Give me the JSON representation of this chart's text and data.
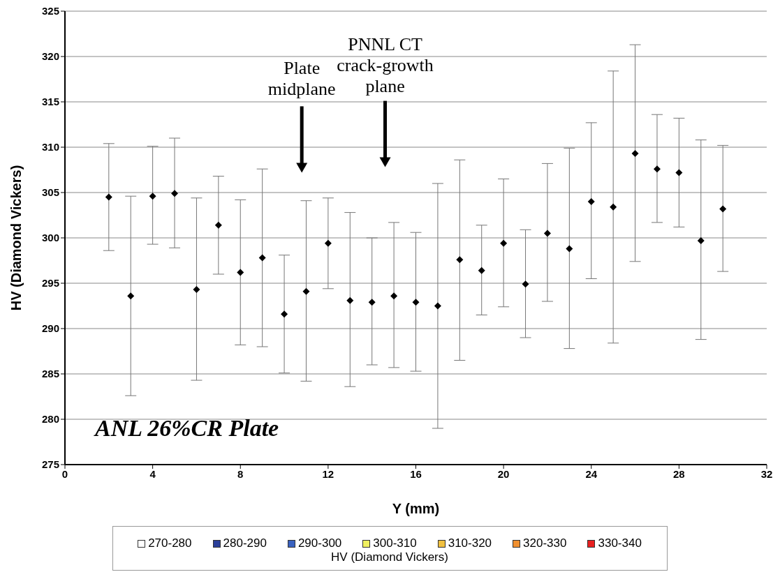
{
  "chart_data": {
    "type": "scatter",
    "xlabel": "Y (mm)",
    "ylabel": "HV (Diamond Vickers)",
    "legend_title": "HV (Diamond Vickers)",
    "x": [
      2,
      3,
      4,
      5,
      6,
      7,
      8,
      9,
      10,
      11,
      12,
      13,
      14,
      15,
      16,
      17,
      18,
      19,
      20,
      21,
      22,
      23,
      24,
      25,
      26,
      27,
      28,
      29,
      30
    ],
    "series": [
      {
        "color": "#000000",
        "values": [
          304.5,
          293.6,
          304.6,
          304.9,
          294.3,
          301.4,
          296.2,
          297.8,
          291.6,
          294.1,
          299.4,
          293.1,
          292.9,
          293.6,
          292.9,
          292.5,
          297.6,
          296.4,
          299.4,
          294.9,
          300.5,
          298.8,
          304.0,
          303.4,
          309.3,
          307.6,
          307.2,
          299.7,
          303.2
        ],
        "errors": [
          [
            298.6,
            310.4
          ],
          [
            282.6,
            304.6
          ],
          [
            299.3,
            310.1
          ],
          [
            298.9,
            311.0
          ],
          [
            284.3,
            304.4
          ],
          [
            296.0,
            306.8
          ],
          [
            288.2,
            304.2
          ],
          [
            288.0,
            307.6
          ],
          [
            285.1,
            298.1
          ],
          [
            284.2,
            304.1
          ],
          [
            294.4,
            304.4
          ],
          [
            283.6,
            302.8
          ],
          [
            286.0,
            300.0
          ],
          [
            285.7,
            301.7
          ],
          [
            285.3,
            300.6
          ],
          [
            279.0,
            306.0
          ],
          [
            286.5,
            308.6
          ],
          [
            291.5,
            301.4
          ],
          [
            292.4,
            306.5
          ],
          [
            289.0,
            300.9
          ],
          [
            293.0,
            308.2
          ],
          [
            287.8,
            309.9
          ],
          [
            295.5,
            312.7
          ],
          [
            288.4,
            318.4
          ],
          [
            297.4,
            321.3
          ],
          [
            301.7,
            313.6
          ],
          [
            301.2,
            313.2
          ],
          [
            288.8,
            310.8
          ],
          [
            296.3,
            310.2
          ]
        ]
      },
      {
        "name": "270-280",
        "color": "#ffffff",
        "values": [
          null,
          null,
          null,
          null,
          null,
          null,
          null,
          null,
          null,
          null,
          null,
          null,
          null,
          null,
          null,
          null,
          null,
          null,
          null,
          null,
          null,
          null,
          null,
          null,
          null,
          null,
          null,
          null,
          null
        ]
      },
      {
        "name": "280-290",
        "color": "#2b3f99",
        "values": [
          null,
          null,
          null,
          null,
          null,
          null,
          null,
          null,
          null,
          null,
          null,
          null,
          null,
          null,
          null,
          null,
          null,
          null,
          null,
          null,
          null,
          null,
          null,
          null,
          null,
          null,
          null,
          null,
          null
        ]
      },
      {
        "name": "290-300",
        "color": "#3a62c0",
        "values": [
          null,
          null,
          null,
          null,
          null,
          null,
          null,
          null,
          null,
          null,
          null,
          null,
          null,
          null,
          null,
          null,
          null,
          null,
          null,
          null,
          null,
          null,
          null,
          null,
          null,
          null,
          null,
          null,
          null
        ]
      },
      {
        "name": "300-310",
        "color": "#f0f060",
        "values": [
          null,
          null,
          null,
          null,
          null,
          null,
          null,
          null,
          null,
          null,
          null,
          null,
          null,
          null,
          null,
          null,
          null,
          null,
          null,
          null,
          null,
          null,
          null,
          null,
          null,
          null,
          null,
          null,
          null
        ]
      },
      {
        "name": "310-320",
        "color": "#f0c040",
        "values": [
          null,
          null,
          null,
          null,
          null,
          null,
          null,
          null,
          null,
          null,
          null,
          null,
          null,
          null,
          null,
          null,
          null,
          null,
          null,
          null,
          null,
          null,
          null,
          null,
          null,
          null,
          null,
          null,
          null
        ]
      },
      {
        "name": "320-330",
        "color": "#f09030",
        "values": [
          null,
          null,
          null,
          null,
          null,
          null,
          null,
          null,
          null,
          null,
          null,
          null,
          null,
          null,
          null,
          null,
          null,
          null,
          null,
          null,
          null,
          null,
          null,
          null,
          null,
          null,
          null,
          null,
          null
        ]
      },
      {
        "name": "330-340",
        "color": "#e82020",
        "values": [
          null,
          null,
          null,
          null,
          null,
          null,
          null,
          null,
          null,
          null,
          null,
          null,
          null,
          null,
          null,
          null,
          null,
          null,
          null,
          null,
          null,
          null,
          null,
          null,
          null,
          null,
          null,
          null,
          null
        ]
      }
    ],
    "xlim": [
      0,
      32
    ],
    "xticks": [
      0,
      4,
      8,
      12,
      16,
      20,
      24,
      28,
      32
    ],
    "ylim": [
      275,
      325
    ],
    "yticks": [
      275,
      280,
      285,
      290,
      295,
      300,
      305,
      310,
      315,
      320,
      325
    ],
    "annotations": [
      "Plate midplane",
      "PNNL CT crack-growth plane",
      "ANL 26%CR Plate"
    ],
    "grid": "y",
    "legend": "bottom",
    "marker": "diamond"
  }
}
